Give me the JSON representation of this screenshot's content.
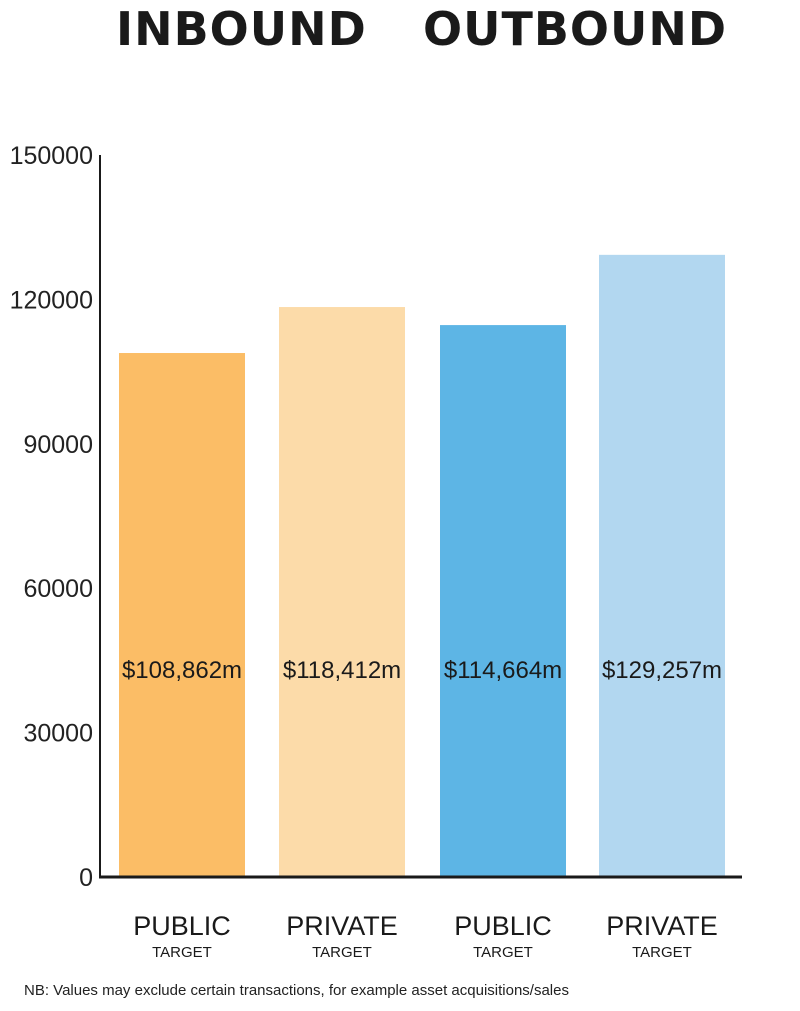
{
  "headers": {
    "left": "INBOUND",
    "right": "OUTBOUND"
  },
  "note": "NB: Values may exclude certain transactions, for example asset acquisitions/sales",
  "colors": {
    "inbound_public": "#FBBD66",
    "inbound_private": "#FCDBA9",
    "outbound_public": "#5DB5E5",
    "outbound_private": "#B2D7F0",
    "axis": "#1a1a1a"
  },
  "chart_data": {
    "type": "bar",
    "ylim": [
      0,
      150000
    ],
    "yticks": [
      0,
      30000,
      60000,
      90000,
      120000,
      150000
    ],
    "ytick_labels": [
      "0",
      "30000",
      "60000",
      "90000",
      "120000",
      "150000"
    ],
    "grid": false,
    "bars": [
      {
        "group": "INBOUND",
        "label": "PUBLIC",
        "sublabel": "TARGET",
        "value": 108862,
        "data_label": "$108,862m",
        "color": "#FBBD66"
      },
      {
        "group": "INBOUND",
        "label": "PRIVATE",
        "sublabel": "TARGET",
        "value": 118412,
        "data_label": "$118,412m",
        "color": "#FCDBA9"
      },
      {
        "group": "OUTBOUND",
        "label": "PUBLIC",
        "sublabel": "TARGET",
        "value": 114664,
        "data_label": "$114,664m",
        "color": "#5DB5E5"
      },
      {
        "group": "OUTBOUND",
        "label": "PRIVATE",
        "sublabel": "TARGET",
        "value": 129257,
        "data_label": "$129,257m",
        "color": "#B2D7F0"
      }
    ]
  }
}
